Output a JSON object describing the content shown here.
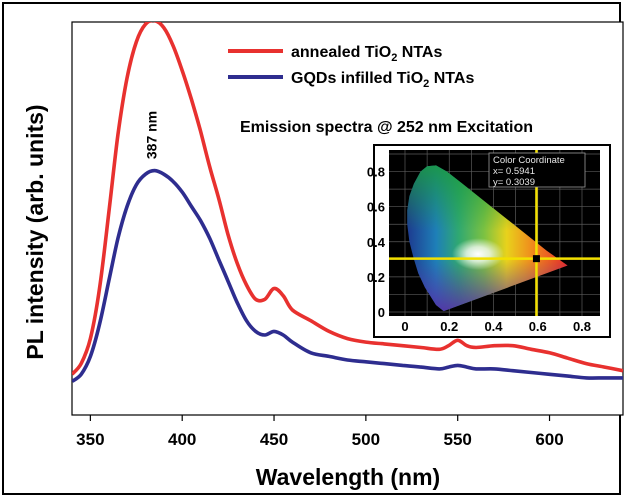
{
  "chart_data": {
    "type": "line",
    "title": "",
    "xlabel": "Wavelength (nm)",
    "ylabel": "PL intensity (arb. units)",
    "xlim": [
      340,
      640
    ],
    "ylim": [
      0,
      1.1
    ],
    "x_ticks": [
      350,
      400,
      450,
      500,
      550,
      600
    ],
    "y_ticks_shown": false,
    "grid": false,
    "legend_position": "top-center",
    "annotations": {
      "subtitle": "Emission  spectra @ 252 nm Excitation",
      "peak_label": "387 nm",
      "peak_x": 387
    },
    "series": [
      {
        "name": "annealed TiO2 NTAs",
        "name_base": "annealed TiO",
        "name_sub": "2",
        "name_rest": " NTAs",
        "color": "#e8312f",
        "x": [
          340,
          345,
          350,
          355,
          360,
          365,
          370,
          375,
          380,
          385,
          390,
          395,
          400,
          405,
          410,
          415,
          420,
          425,
          430,
          435,
          440,
          445,
          450,
          455,
          460,
          470,
          480,
          490,
          500,
          510,
          520,
          530,
          540,
          545,
          550,
          555,
          560,
          570,
          580,
          590,
          600,
          610,
          620,
          630,
          640
        ],
        "values": [
          0.03,
          0.06,
          0.13,
          0.27,
          0.48,
          0.7,
          0.86,
          0.96,
          1.01,
          1.02,
          1.0,
          0.95,
          0.88,
          0.8,
          0.71,
          0.61,
          0.52,
          0.42,
          0.34,
          0.28,
          0.24,
          0.24,
          0.27,
          0.25,
          0.21,
          0.18,
          0.15,
          0.13,
          0.12,
          0.115,
          0.11,
          0.105,
          0.1,
          0.11,
          0.125,
          0.11,
          0.105,
          0.11,
          0.11,
          0.1,
          0.09,
          0.075,
          0.06,
          0.05,
          0.04
        ]
      },
      {
        "name": "GQDs infilled TiO2 NTAs",
        "name_base": "GQDs infilled TiO",
        "name_sub": "2",
        "name_rest": " NTAs",
        "color": "#2e2d8f",
        "x": [
          340,
          345,
          350,
          355,
          360,
          365,
          370,
          375,
          380,
          385,
          390,
          395,
          400,
          405,
          410,
          415,
          420,
          425,
          430,
          435,
          440,
          445,
          450,
          455,
          460,
          470,
          480,
          490,
          500,
          510,
          520,
          530,
          540,
          545,
          550,
          555,
          560,
          570,
          580,
          590,
          600,
          610,
          620,
          630,
          640
        ],
        "values": [
          0.01,
          0.03,
          0.08,
          0.17,
          0.29,
          0.41,
          0.5,
          0.56,
          0.59,
          0.6,
          0.59,
          0.57,
          0.54,
          0.5,
          0.46,
          0.41,
          0.35,
          0.29,
          0.23,
          0.18,
          0.15,
          0.14,
          0.15,
          0.14,
          0.12,
          0.09,
          0.08,
          0.07,
          0.065,
          0.06,
          0.055,
          0.05,
          0.045,
          0.05,
          0.055,
          0.05,
          0.045,
          0.045,
          0.04,
          0.035,
          0.03,
          0.025,
          0.02,
          0.02,
          0.02
        ]
      }
    ],
    "inset": {
      "title": "Color Coordinate",
      "x_text": "x= 0.5941",
      "y_text": "y= 0.3039",
      "x_value": 0.5941,
      "y_value": 0.3039,
      "xlim": [
        0,
        0.8
      ],
      "ylim": [
        0,
        0.9
      ],
      "x_ticks": [
        "0",
        "0.2",
        "0.4",
        "0.6",
        "0.8"
      ],
      "y_ticks": [
        "0",
        "0.2",
        "0.4",
        "0.6",
        "0.8"
      ],
      "marker_color": "#f2e000"
    }
  }
}
